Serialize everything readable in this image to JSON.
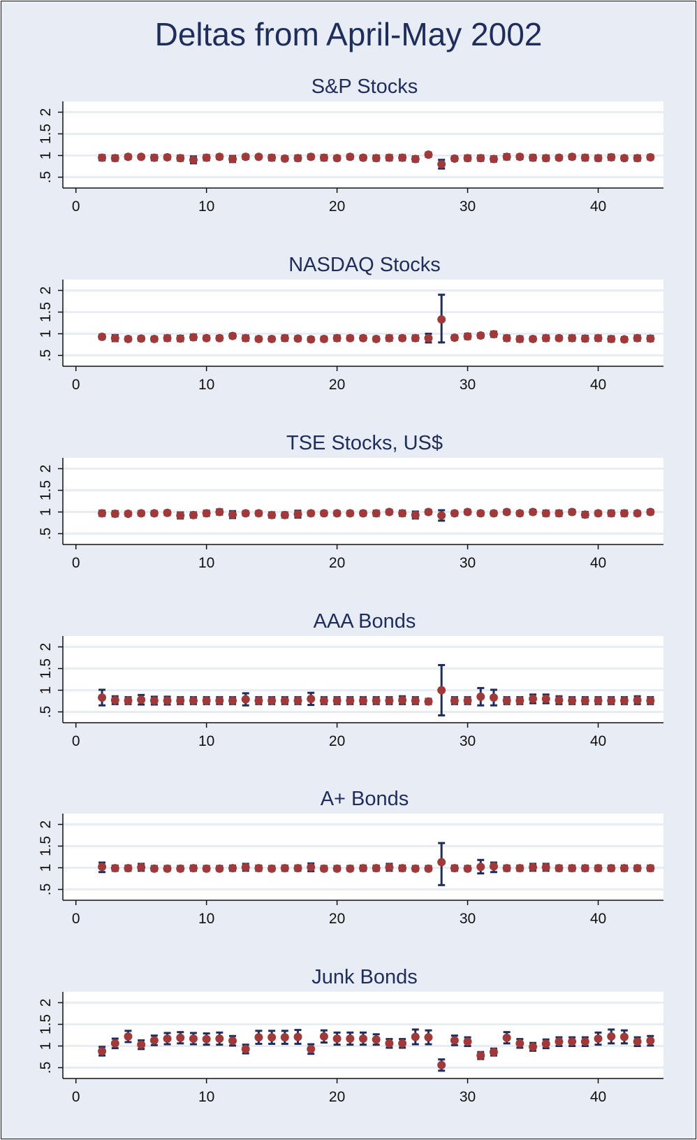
{
  "title": "Deltas from April-May 2002",
  "colors": {
    "background": "#e8ecf4",
    "plot_area": "#ffffff",
    "gridline": "#e8ecf4",
    "axis": "#111111",
    "text": "#1f2d5a",
    "marker": "#a03a3a",
    "error_bar": "#1f2d5a"
  },
  "chart_data": [
    {
      "type": "scatter",
      "title": "S&P Stocks",
      "xticks": [
        0,
        10,
        20,
        30,
        40
      ],
      "yticks": [
        0.5,
        1,
        1.5,
        2
      ],
      "ytick_labels": [
        ".5",
        "1",
        "1.5",
        "2"
      ],
      "xlim": [
        -1,
        45
      ],
      "ylim": [
        0.25,
        2.25
      ],
      "grid": true,
      "x": [
        2,
        3,
        4,
        5,
        6,
        7,
        8,
        9,
        10,
        11,
        12,
        13,
        14,
        15,
        16,
        17,
        18,
        19,
        20,
        21,
        22,
        23,
        24,
        25,
        26,
        27,
        28,
        29,
        30,
        31,
        32,
        33,
        34,
        35,
        36,
        37,
        38,
        39,
        40,
        41,
        42,
        43,
        44
      ],
      "y": [
        0.95,
        0.94,
        0.97,
        0.97,
        0.95,
        0.96,
        0.94,
        0.9,
        0.95,
        0.97,
        0.92,
        0.97,
        0.97,
        0.95,
        0.93,
        0.94,
        0.97,
        0.95,
        0.94,
        0.97,
        0.95,
        0.94,
        0.95,
        0.95,
        0.92,
        1.02,
        0.8,
        0.93,
        0.94,
        0.94,
        0.92,
        0.97,
        0.97,
        0.95,
        0.94,
        0.95,
        0.97,
        0.95,
        0.94,
        0.96,
        0.94,
        0.94,
        0.96
      ],
      "ci_low": [
        0.89,
        0.88,
        0.92,
        0.93,
        0.89,
        0.91,
        0.88,
        0.82,
        0.89,
        0.92,
        0.85,
        0.92,
        0.93,
        0.89,
        0.88,
        0.88,
        0.92,
        0.89,
        0.89,
        0.92,
        0.9,
        0.88,
        0.89,
        0.89,
        0.86,
        0.97,
        0.7,
        0.88,
        0.88,
        0.88,
        0.86,
        0.91,
        0.92,
        0.89,
        0.88,
        0.9,
        0.92,
        0.89,
        0.88,
        0.9,
        0.89,
        0.88,
        0.91
      ],
      "ci_high": [
        1.01,
        1.0,
        1.02,
        1.01,
        1.01,
        1.01,
        1.0,
        0.98,
        1.01,
        1.02,
        0.99,
        1.02,
        1.01,
        1.01,
        0.98,
        1.0,
        1.02,
        1.01,
        0.99,
        1.02,
        1.0,
        1.0,
        1.01,
        1.01,
        0.98,
        1.07,
        0.9,
        0.98,
        1.0,
        1.0,
        0.98,
        1.03,
        1.02,
        1.01,
        1.0,
        1.0,
        1.02,
        1.01,
        1.0,
        1.02,
        0.99,
        1.0,
        1.01
      ]
    },
    {
      "type": "scatter",
      "title": "NASDAQ Stocks",
      "xticks": [
        0,
        10,
        20,
        30,
        40
      ],
      "yticks": [
        0.5,
        1,
        1.5,
        2
      ],
      "ytick_labels": [
        ".5",
        "1",
        "1.5",
        "2"
      ],
      "xlim": [
        -1,
        45
      ],
      "ylim": [
        0.25,
        2.25
      ],
      "grid": true,
      "x": [
        2,
        3,
        4,
        5,
        6,
        7,
        8,
        9,
        10,
        11,
        12,
        13,
        14,
        15,
        16,
        17,
        18,
        19,
        20,
        21,
        22,
        23,
        24,
        25,
        26,
        27,
        28,
        29,
        30,
        31,
        32,
        33,
        34,
        35,
        36,
        37,
        38,
        39,
        40,
        41,
        42,
        43,
        44
      ],
      "y": [
        0.93,
        0.9,
        0.88,
        0.89,
        0.88,
        0.9,
        0.89,
        0.92,
        0.9,
        0.9,
        0.95,
        0.9,
        0.88,
        0.88,
        0.9,
        0.89,
        0.87,
        0.88,
        0.9,
        0.9,
        0.9,
        0.88,
        0.9,
        0.9,
        0.9,
        0.9,
        1.33,
        0.91,
        0.94,
        0.96,
        0.99,
        0.9,
        0.88,
        0.88,
        0.9,
        0.9,
        0.9,
        0.89,
        0.9,
        0.88,
        0.87,
        0.9,
        0.89
      ],
      "ci_low": [
        0.88,
        0.83,
        0.83,
        0.84,
        0.83,
        0.84,
        0.83,
        0.86,
        0.85,
        0.85,
        0.9,
        0.84,
        0.83,
        0.83,
        0.84,
        0.84,
        0.82,
        0.83,
        0.84,
        0.85,
        0.85,
        0.83,
        0.84,
        0.85,
        0.84,
        0.8,
        0.8,
        0.86,
        0.88,
        0.91,
        0.93,
        0.84,
        0.82,
        0.83,
        0.84,
        0.85,
        0.84,
        0.83,
        0.84,
        0.82,
        0.82,
        0.84,
        0.83
      ],
      "ci_high": [
        0.98,
        0.97,
        0.93,
        0.94,
        0.93,
        0.96,
        0.95,
        0.98,
        0.95,
        0.95,
        1.0,
        0.96,
        0.93,
        0.93,
        0.96,
        0.94,
        0.92,
        0.93,
        0.96,
        0.95,
        0.95,
        0.93,
        0.96,
        0.95,
        0.96,
        1.0,
        1.9,
        0.96,
        1.0,
        1.01,
        1.05,
        0.96,
        0.94,
        0.93,
        0.96,
        0.95,
        0.96,
        0.95,
        0.96,
        0.94,
        0.92,
        0.96,
        0.95
      ]
    },
    {
      "type": "scatter",
      "title": "TSE Stocks, US$",
      "xticks": [
        0,
        10,
        20,
        30,
        40
      ],
      "yticks": [
        0.5,
        1,
        1.5,
        2
      ],
      "ytick_labels": [
        ".5",
        "1",
        "1.5",
        "2"
      ],
      "xlim": [
        -1,
        45
      ],
      "ylim": [
        0.25,
        2.25
      ],
      "grid": true,
      "x": [
        2,
        3,
        4,
        5,
        6,
        7,
        8,
        9,
        10,
        11,
        12,
        13,
        14,
        15,
        16,
        17,
        18,
        19,
        20,
        21,
        22,
        23,
        24,
        25,
        26,
        27,
        28,
        29,
        30,
        31,
        32,
        33,
        34,
        35,
        36,
        37,
        38,
        39,
        40,
        41,
        42,
        43,
        44
      ],
      "y": [
        0.97,
        0.96,
        0.96,
        0.97,
        0.97,
        0.98,
        0.92,
        0.93,
        0.97,
        1.0,
        0.94,
        0.97,
        0.97,
        0.93,
        0.93,
        0.95,
        0.97,
        0.97,
        0.97,
        0.97,
        0.97,
        0.97,
        1.0,
        0.97,
        0.93,
        1.0,
        0.92,
        0.97,
        1.0,
        0.97,
        0.97,
        1.0,
        0.97,
        1.0,
        0.97,
        0.97,
        1.0,
        0.94,
        0.97,
        0.97,
        0.97,
        0.97,
        1.0
      ],
      "ci_low": [
        0.91,
        0.9,
        0.91,
        0.92,
        0.92,
        0.93,
        0.85,
        0.87,
        0.91,
        0.94,
        0.86,
        0.92,
        0.92,
        0.87,
        0.87,
        0.87,
        0.92,
        0.92,
        0.92,
        0.92,
        0.92,
        0.91,
        0.95,
        0.91,
        0.85,
        0.95,
        0.8,
        0.92,
        0.95,
        0.92,
        0.92,
        0.95,
        0.92,
        0.95,
        0.91,
        0.91,
        0.95,
        0.88,
        0.92,
        0.91,
        0.91,
        0.92,
        0.95
      ],
      "ci_high": [
        1.03,
        1.02,
        1.01,
        1.02,
        1.02,
        1.03,
        0.99,
        0.99,
        1.03,
        1.06,
        1.02,
        1.02,
        1.02,
        0.99,
        0.99,
        1.03,
        1.02,
        1.02,
        1.02,
        1.02,
        1.02,
        1.03,
        1.05,
        1.03,
        1.01,
        1.05,
        1.04,
        1.02,
        1.05,
        1.02,
        1.02,
        1.05,
        1.02,
        1.05,
        1.03,
        1.03,
        1.05,
        1.0,
        1.02,
        1.03,
        1.03,
        1.02,
        1.05
      ]
    },
    {
      "type": "scatter",
      "title": "AAA Bonds",
      "xticks": [
        0,
        10,
        20,
        30,
        40
      ],
      "yticks": [
        0.5,
        1,
        1.5,
        2
      ],
      "ytick_labels": [
        ".5",
        "1",
        "1.5",
        "2"
      ],
      "xlim": [
        -1,
        45
      ],
      "ylim": [
        0.25,
        2.25
      ],
      "grid": true,
      "x": [
        2,
        3,
        4,
        5,
        6,
        7,
        8,
        9,
        10,
        11,
        12,
        13,
        14,
        15,
        16,
        17,
        18,
        19,
        20,
        21,
        22,
        23,
        24,
        25,
        26,
        27,
        28,
        29,
        30,
        31,
        32,
        33,
        34,
        35,
        36,
        37,
        38,
        39,
        40,
        41,
        42,
        43,
        44
      ],
      "y": [
        0.83,
        0.77,
        0.76,
        0.78,
        0.76,
        0.76,
        0.76,
        0.76,
        0.76,
        0.76,
        0.76,
        0.79,
        0.76,
        0.76,
        0.76,
        0.76,
        0.8,
        0.76,
        0.76,
        0.76,
        0.76,
        0.76,
        0.76,
        0.77,
        0.76,
        0.74,
        1.0,
        0.76,
        0.76,
        0.85,
        0.83,
        0.76,
        0.76,
        0.8,
        0.8,
        0.77,
        0.76,
        0.76,
        0.76,
        0.76,
        0.76,
        0.77,
        0.76
      ],
      "ci_low": [
        0.65,
        0.68,
        0.68,
        0.67,
        0.67,
        0.67,
        0.68,
        0.68,
        0.68,
        0.68,
        0.68,
        0.65,
        0.68,
        0.68,
        0.68,
        0.68,
        0.66,
        0.68,
        0.68,
        0.68,
        0.68,
        0.68,
        0.68,
        0.68,
        0.68,
        0.68,
        0.42,
        0.68,
        0.68,
        0.65,
        0.65,
        0.68,
        0.68,
        0.7,
        0.7,
        0.68,
        0.68,
        0.68,
        0.68,
        0.68,
        0.68,
        0.68,
        0.68
      ],
      "ci_high": [
        1.01,
        0.86,
        0.84,
        0.89,
        0.85,
        0.85,
        0.84,
        0.84,
        0.84,
        0.84,
        0.84,
        0.93,
        0.84,
        0.84,
        0.84,
        0.84,
        0.94,
        0.84,
        0.84,
        0.84,
        0.84,
        0.84,
        0.84,
        0.86,
        0.84,
        0.8,
        1.58,
        0.84,
        0.84,
        1.05,
        1.01,
        0.84,
        0.84,
        0.9,
        0.9,
        0.86,
        0.84,
        0.84,
        0.84,
        0.84,
        0.84,
        0.86,
        0.84
      ]
    },
    {
      "type": "scatter",
      "title": "A+ Bonds",
      "xticks": [
        0,
        10,
        20,
        30,
        40
      ],
      "yticks": [
        0.5,
        1,
        1.5,
        2
      ],
      "ytick_labels": [
        ".5",
        "1",
        "1.5",
        "2"
      ],
      "xlim": [
        -1,
        45
      ],
      "ylim": [
        0.25,
        2.25
      ],
      "grid": true,
      "x": [
        2,
        3,
        4,
        5,
        6,
        7,
        8,
        9,
        10,
        11,
        12,
        13,
        14,
        15,
        16,
        17,
        18,
        19,
        20,
        21,
        22,
        23,
        24,
        25,
        26,
        27,
        28,
        29,
        30,
        31,
        32,
        33,
        34,
        35,
        36,
        37,
        38,
        39,
        40,
        41,
        42,
        43,
        44
      ],
      "y": [
        1.02,
        0.99,
        0.99,
        1.01,
        0.98,
        0.98,
        0.98,
        0.99,
        0.98,
        0.98,
        0.99,
        1.01,
        0.99,
        0.98,
        0.99,
        0.99,
        1.01,
        0.98,
        0.98,
        0.98,
        0.99,
        0.99,
        1.01,
        0.99,
        0.98,
        0.98,
        1.13,
        0.99,
        0.98,
        1.02,
        1.03,
        0.99,
        0.99,
        1.01,
        1.01,
        0.99,
        0.99,
        0.99,
        0.99,
        0.99,
        0.99,
        0.99,
        0.99
      ],
      "ci_low": [
        0.9,
        0.93,
        0.93,
        0.93,
        0.93,
        0.93,
        0.93,
        0.93,
        0.93,
        0.93,
        0.93,
        0.93,
        0.93,
        0.93,
        0.93,
        0.93,
        0.92,
        0.93,
        0.93,
        0.93,
        0.93,
        0.93,
        0.93,
        0.93,
        0.93,
        0.93,
        0.6,
        0.93,
        0.93,
        0.87,
        0.9,
        0.93,
        0.93,
        0.93,
        0.93,
        0.93,
        0.93,
        0.93,
        0.93,
        0.93,
        0.93,
        0.93,
        0.93
      ],
      "ci_high": [
        1.12,
        1.05,
        1.05,
        1.09,
        1.04,
        1.04,
        1.04,
        1.05,
        1.04,
        1.04,
        1.05,
        1.09,
        1.05,
        1.04,
        1.05,
        1.05,
        1.1,
        1.04,
        1.04,
        1.04,
        1.05,
        1.05,
        1.09,
        1.05,
        1.04,
        1.04,
        1.57,
        1.05,
        1.04,
        1.18,
        1.12,
        1.05,
        1.05,
        1.09,
        1.09,
        1.05,
        1.05,
        1.05,
        1.05,
        1.05,
        1.05,
        1.05,
        1.05
      ]
    },
    {
      "type": "scatter",
      "title": "Junk Bonds",
      "xticks": [
        0,
        10,
        20,
        30,
        40
      ],
      "yticks": [
        0.5,
        1,
        1.5,
        2
      ],
      "ytick_labels": [
        ".5",
        "1",
        "1.5",
        "2"
      ],
      "xlim": [
        -1,
        45
      ],
      "ylim": [
        0.25,
        2.25
      ],
      "grid": true,
      "x": [
        2,
        3,
        4,
        5,
        6,
        7,
        8,
        9,
        10,
        11,
        12,
        13,
        14,
        15,
        16,
        17,
        18,
        19,
        20,
        21,
        22,
        23,
        24,
        25,
        26,
        27,
        28,
        29,
        30,
        31,
        32,
        33,
        34,
        35,
        36,
        37,
        38,
        39,
        40,
        41,
        42,
        43,
        44
      ],
      "y": [
        0.88,
        1.06,
        1.22,
        1.03,
        1.13,
        1.17,
        1.19,
        1.17,
        1.16,
        1.17,
        1.12,
        0.93,
        1.2,
        1.2,
        1.2,
        1.21,
        0.93,
        1.22,
        1.17,
        1.17,
        1.17,
        1.15,
        1.06,
        1.06,
        1.21,
        1.2,
        0.56,
        1.13,
        1.1,
        0.78,
        0.86,
        1.19,
        1.06,
        0.98,
        1.05,
        1.1,
        1.1,
        1.1,
        1.17,
        1.22,
        1.21,
        1.1,
        1.12
      ],
      "ci_low": [
        0.78,
        0.95,
        1.09,
        0.93,
        1.02,
        1.04,
        1.06,
        1.04,
        1.03,
        1.03,
        1.01,
        0.83,
        1.05,
        1.05,
        1.05,
        1.05,
        0.82,
        1.08,
        1.03,
        1.03,
        1.03,
        1.03,
        0.96,
        0.96,
        1.04,
        1.04,
        0.43,
        1.02,
        1.0,
        0.7,
        0.78,
        1.06,
        0.96,
        0.89,
        0.95,
        1.0,
        1.0,
        1.0,
        1.03,
        1.06,
        1.06,
        1.0,
        1.01
      ],
      "ci_high": [
        0.98,
        1.17,
        1.35,
        1.13,
        1.24,
        1.3,
        1.32,
        1.3,
        1.29,
        1.31,
        1.23,
        1.03,
        1.35,
        1.35,
        1.35,
        1.37,
        1.04,
        1.36,
        1.31,
        1.31,
        1.31,
        1.27,
        1.16,
        1.16,
        1.38,
        1.36,
        0.69,
        1.24,
        1.2,
        0.86,
        0.94,
        1.32,
        1.16,
        1.07,
        1.15,
        1.2,
        1.2,
        1.2,
        1.31,
        1.38,
        1.36,
        1.2,
        1.23
      ]
    }
  ]
}
